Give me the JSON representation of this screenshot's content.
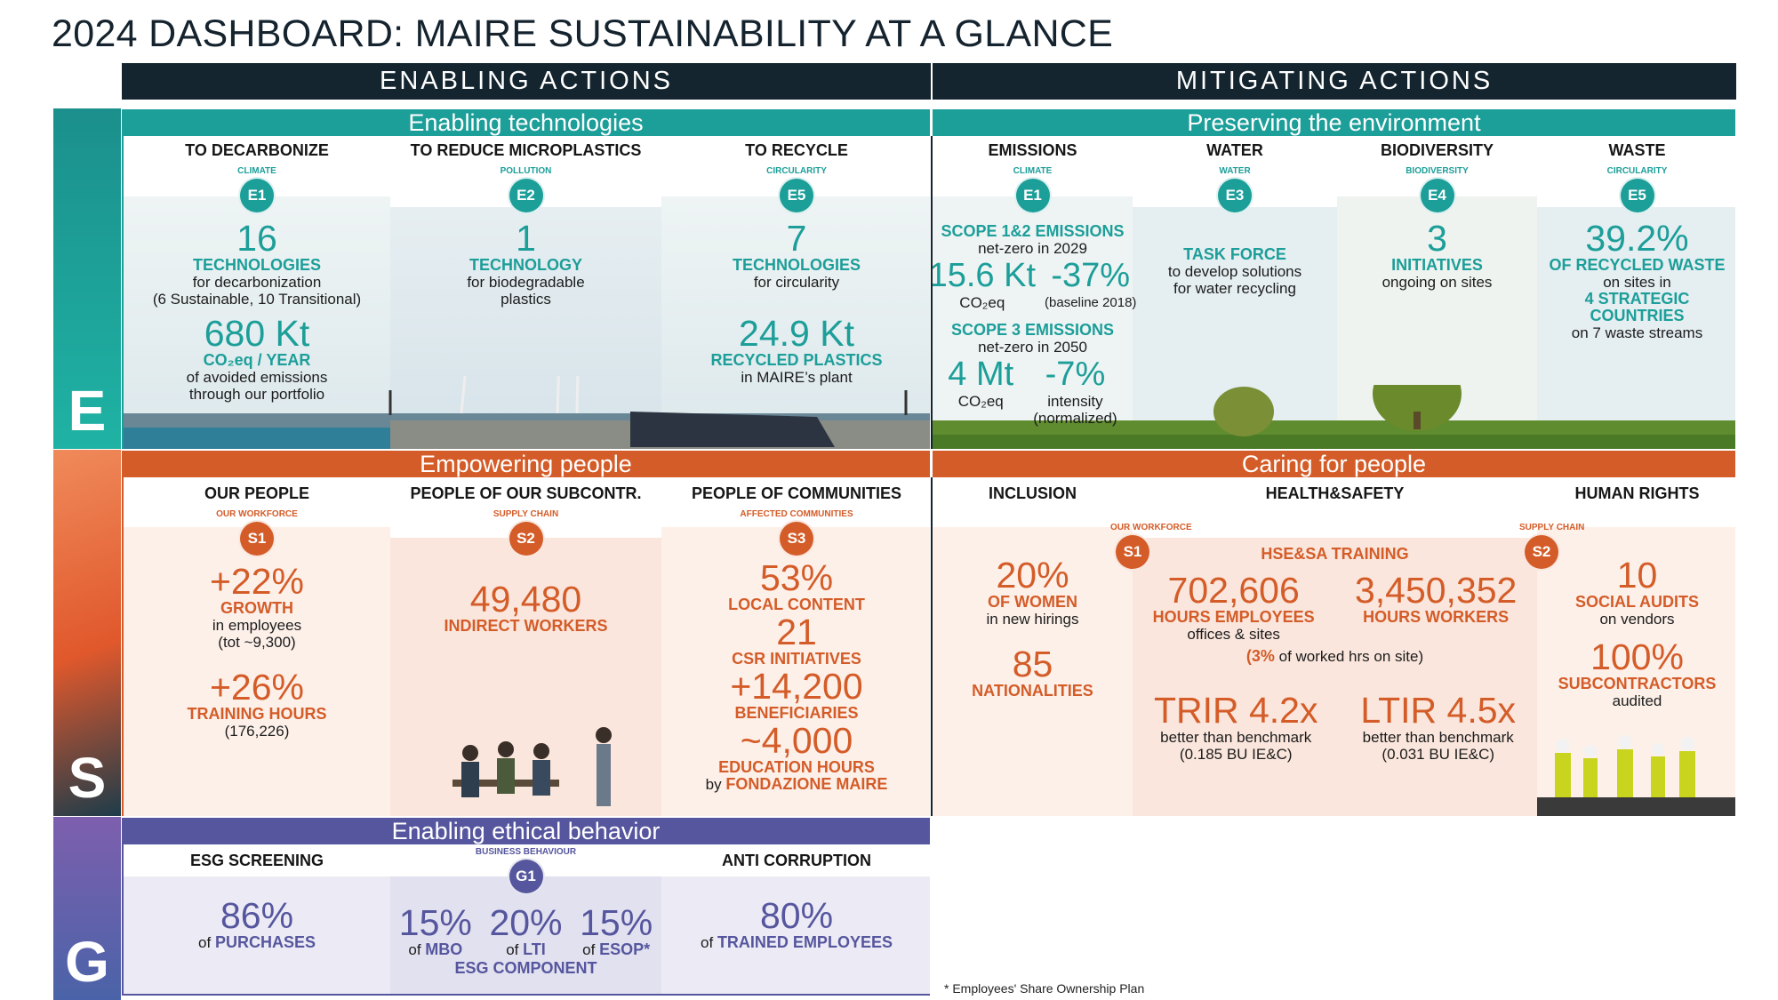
{
  "title": "2024 DASHBOARD: MAIRE SUSTAINABILITY AT A GLANCE",
  "headers": {
    "enabling": "ENABLING ACTIONS",
    "mitigating": "MITIGATING ACTIONS"
  },
  "letters": {
    "e": "E",
    "s": "S",
    "g": "G"
  },
  "colors": {
    "teal": "#1c9e99",
    "orange": "#d45c28",
    "purple": "#56569e",
    "navy": "#14252f"
  },
  "e_left": {
    "section": "Enabling technologies",
    "cols": [
      {
        "heading": "TO DECARBONIZE",
        "badge": "E1",
        "badge_caption": "CLIMATE",
        "v1": "16",
        "l1": "TECHNOLOGIES",
        "d1a": "for decarbonization",
        "d1b": "(6 Sustainable, 10 Transitional)",
        "v2": "680 Kt",
        "l2": "CO₂eq / YEAR",
        "d2a": "of avoided emissions",
        "d2b": "through our portfolio"
      },
      {
        "heading": "TO REDUCE MICROPLASTICS",
        "badge": "E2",
        "badge_caption": "POLLUTION",
        "v1": "1",
        "l1": "TECHNOLOGY",
        "d1a": "for biodegradable",
        "d1b": "plastics"
      },
      {
        "heading": "TO RECYCLE",
        "badge": "E5",
        "badge_caption": "CIRCULARITY",
        "v1": "7",
        "l1": "TECHNOLOGIES",
        "d1a": "for circularity",
        "v2": "24.9 Kt",
        "l2": "RECYCLED PLASTICS",
        "d2a": "in MAIRE’s plant"
      }
    ]
  },
  "e_right": {
    "section": "Preserving the environment",
    "emissions": {
      "heading": "EMISSIONS",
      "badge": "E1",
      "badge_caption": "CLIMATE",
      "s12_label": "SCOPE 1&2 EMISSIONS",
      "s12_sub": "net-zero in 2029",
      "s12_v1": "15.6 Kt",
      "s12_v2": "-37%",
      "s12_u1": "CO₂eq",
      "s12_u2": "(baseline 2018)",
      "s3_label": "SCOPE 3 EMISSIONS",
      "s3_sub": "net-zero in 2050",
      "s3_v1": "4 Mt",
      "s3_v2": "-7%",
      "s3_u1": "CO₂eq",
      "s3_u2a": "intensity",
      "s3_u2b": "(normalized)"
    },
    "water": {
      "heading": "WATER",
      "badge": "E3",
      "badge_caption": "WATER",
      "l1": "TASK FORCE",
      "d1a": "to develop solutions",
      "d1b": "for water recycling"
    },
    "biodiversity": {
      "heading": "BIODIVERSITY",
      "badge": "E4",
      "badge_caption": "BIODIVERSITY",
      "v1": "3",
      "l1": "INITIATIVES",
      "d1a": "ongoing on sites"
    },
    "waste": {
      "heading": "WASTE",
      "badge": "E5",
      "badge_caption": "CIRCULARITY",
      "v1": "39.2%",
      "l1": "OF RECYCLED WASTE",
      "d1a": "on sites in",
      "l2a": "4 STRATEGIC",
      "l2b": "COUNTRIES",
      "d2a": "on 7 waste streams"
    }
  },
  "s_left": {
    "section": "Empowering people",
    "cols": [
      {
        "heading": "OUR PEOPLE",
        "badge": "S1",
        "badge_caption": "OUR WORKFORCE",
        "v1": "+22%",
        "l1": "GROWTH",
        "d1a": "in employees",
        "d1b": "(tot ~9,300)",
        "v2": "+26%",
        "l2": "TRAINING HOURS",
        "d2a": "(176,226)"
      },
      {
        "heading": "PEOPLE OF OUR SUBCONTR.",
        "badge": "S2",
        "badge_caption": "SUPPLY CHAIN",
        "v1": "49,480",
        "l1": "INDIRECT WORKERS"
      },
      {
        "heading": "PEOPLE OF COMMUNITIES",
        "badge": "S3",
        "badge_caption": "AFFECTED COMMUNITIES",
        "v1": "53%",
        "l1": "LOCAL CONTENT",
        "v2": "21",
        "l2": "CSR INITIATIVES",
        "v3": "+14,200",
        "l3": "BENEFICIARIES",
        "v4": "~4,000",
        "l4": "EDUCATION HOURS",
        "d4a": "by",
        "d4b": "FONDAZIONE MAIRE"
      }
    ]
  },
  "s_right": {
    "section": "Caring for people",
    "inclusion": {
      "heading": "INCLUSION",
      "v1": "20%",
      "l1": "OF WOMEN",
      "d1a": "in new hirings",
      "v2": "85",
      "l2": "NATIONALITIES"
    },
    "health": {
      "heading": "HEALTH&SAFETY",
      "badge": "S1",
      "badge_caption": "OUR WORKFORCE",
      "training": "HSE&SA TRAINING",
      "v1": "702,606",
      "l1": "HOURS EMPLOYEES",
      "d1a": "offices & sites",
      "v2": "3,450,352",
      "l2": "HOURS WORKERS",
      "note_pct": "(3%",
      "note_rest": "of worked hrs on site)",
      "v3": "TRIR 4.2x",
      "d3a": "better than benchmark",
      "d3b": "(0.185 BU IE&C)",
      "v4": "LTIR 4.5x",
      "d4a": "better than benchmark",
      "d4b": "(0.031 BU IE&C)"
    },
    "rights": {
      "heading": "HUMAN RIGHTS",
      "badge": "S2",
      "badge_caption": "SUPPLY CHAIN",
      "v1": "10",
      "l1": "SOCIAL AUDITS",
      "d1a": "on vendors",
      "v2": "100%",
      "l2": "SUBCONTRACTORS",
      "d2a": "audited"
    }
  },
  "g": {
    "section": "Enabling ethical behavior",
    "screening": {
      "heading": "ESG SCREENING",
      "v1": "86%",
      "d1": "of",
      "l1": "PURCHASES"
    },
    "behaviour": {
      "badge": "G1",
      "badge_caption": "BUSINESS BEHAVIOUR",
      "items": [
        {
          "v": "15%",
          "d": "of",
          "l": "MBO"
        },
        {
          "v": "20%",
          "d": "of",
          "l": "LTI"
        },
        {
          "v": "15%",
          "d": "of",
          "l": "ESOP*"
        }
      ],
      "component": "ESG COMPONENT"
    },
    "anti": {
      "heading": "ANTI CORRUPTION",
      "v1": "80%",
      "d1": "of",
      "l1": "TRAINED EMPLOYEES"
    }
  },
  "footnote": "* Employees' Share Ownership Plan"
}
